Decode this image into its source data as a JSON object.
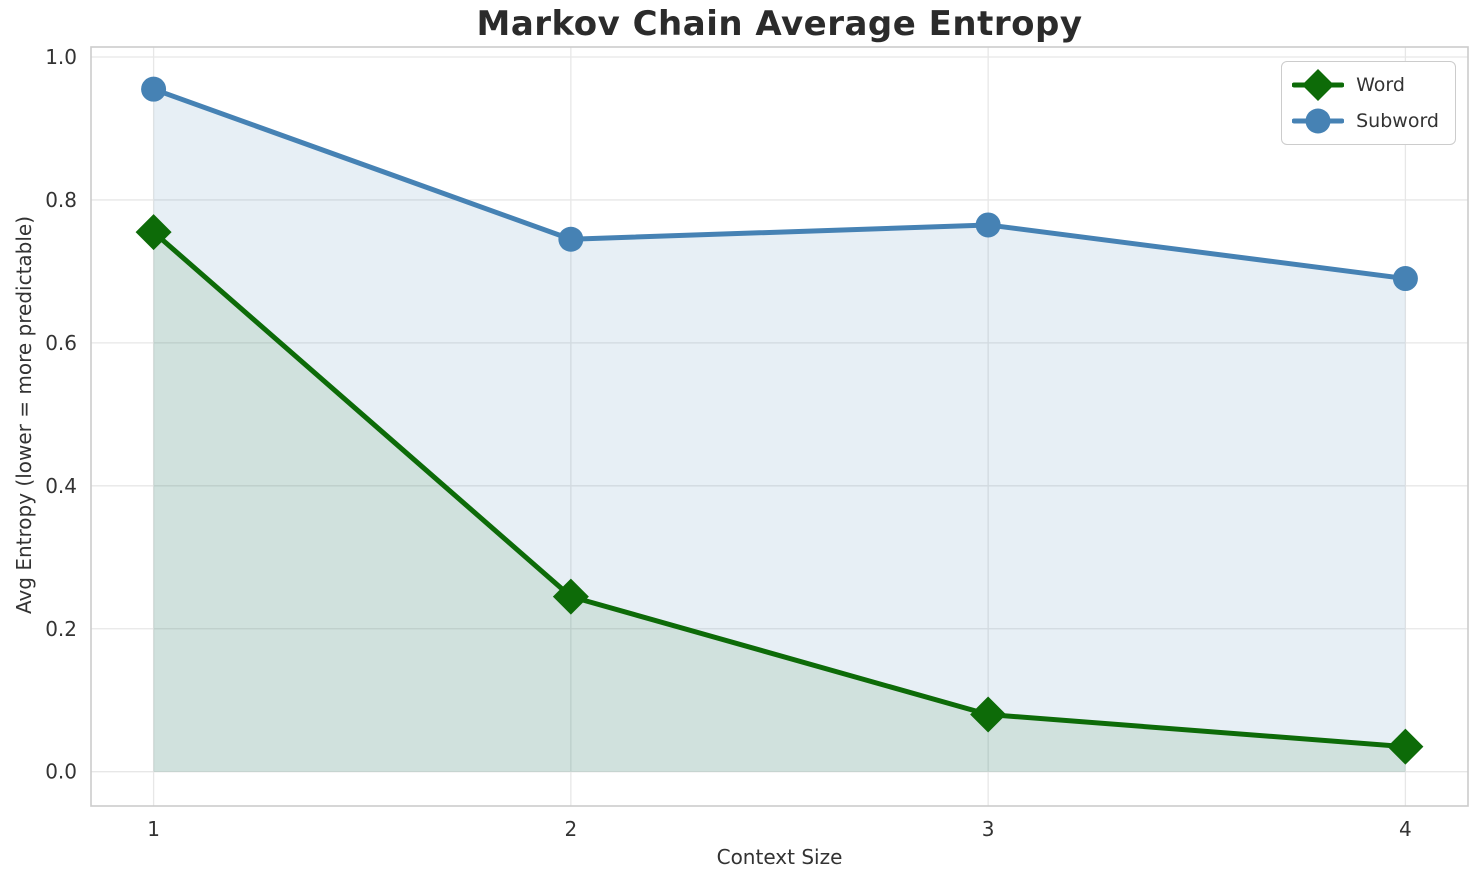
{
  "chart_data": {
    "type": "line",
    "title": "Markov Chain Average Entropy",
    "xlabel": "Context Size",
    "ylabel": "Avg Entropy (lower = more predictable)",
    "x": [
      1,
      2,
      3,
      4
    ],
    "x_tick_labels": [
      "1",
      "2",
      "3",
      "4"
    ],
    "y_ticks": [
      0.0,
      0.2,
      0.4,
      0.6,
      0.8,
      1.0
    ],
    "y_tick_labels": [
      "0.0",
      "0.2",
      "0.4",
      "0.6",
      "0.8",
      "1.0"
    ],
    "ylim": [
      0,
      1
    ],
    "xlim_display": [
      0.85,
      4.15
    ],
    "ylim_display": [
      -0.048,
      1.014
    ],
    "grid": true,
    "legend_position": "upper right",
    "series": [
      {
        "name": "Word",
        "values": [
          0.755,
          0.245,
          0.08,
          0.035
        ],
        "color": "#0d6b08",
        "marker": "diamond",
        "fill_to_zero": true,
        "fill_opacity": 0.1
      },
      {
        "name": "Subword",
        "values": [
          0.955,
          0.745,
          0.765,
          0.69
        ],
        "color": "#4682b4",
        "marker": "circle",
        "fill_to_zero": true,
        "fill_opacity": 0.13
      }
    ]
  },
  "style_colors": {
    "grid": "#e7e7e7",
    "spine": "#cccccc",
    "tick_text": "#333333",
    "plot_background": "#ffffff"
  }
}
